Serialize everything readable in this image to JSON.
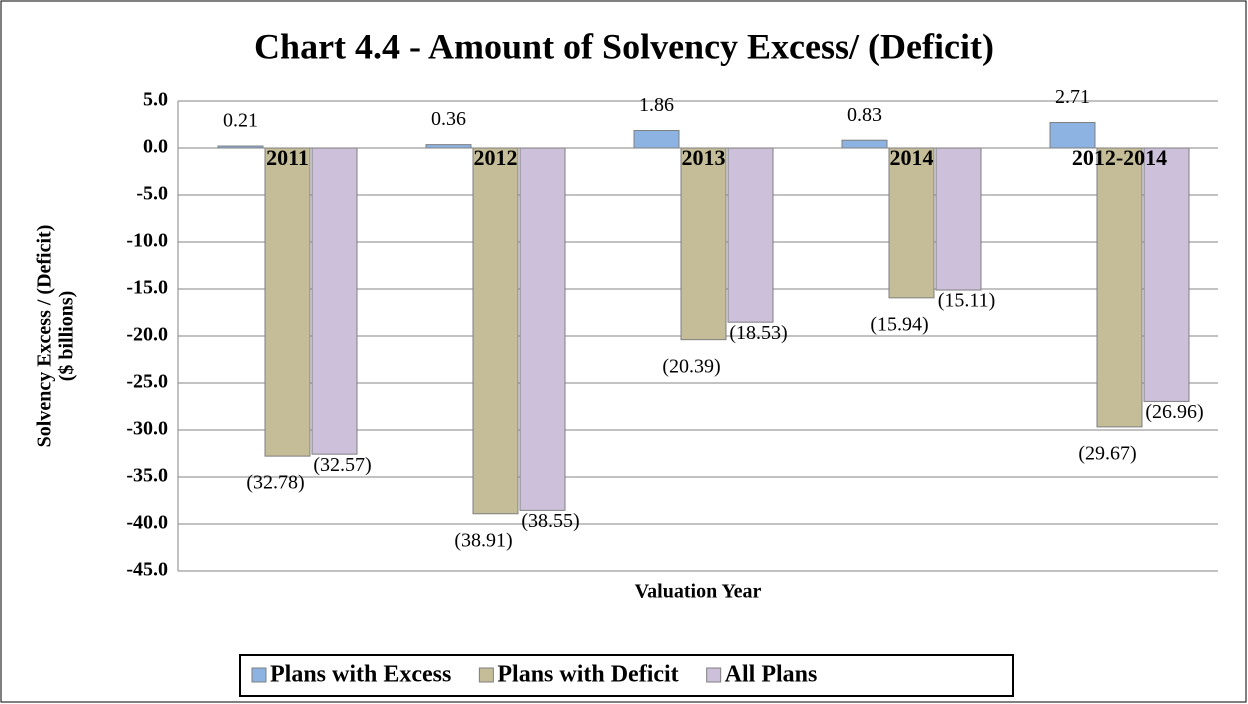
{
  "chart_data": {
    "type": "bar",
    "title": "Chart 4.4 - Amount of Solvency Excess/ (Deficit)",
    "y_label": "Solvency Excess / (Deficit)",
    "y_label_unit": "($ billions)",
    "x_label": "Valuation Year",
    "categories": [
      "2011",
      "2012",
      "2013",
      "2014",
      "2012-2014"
    ],
    "series": [
      {
        "name": "Plans with Excess",
        "color": "#8db3e2",
        "values": [
          0.21,
          0.36,
          1.86,
          0.83,
          2.71
        ]
      },
      {
        "name": "Plans with Deficit",
        "color": "#c4bd97",
        "values": [
          -32.78,
          -38.91,
          -20.39,
          -15.94,
          -29.67
        ],
        "value_labels": [
          "(32.78)",
          "(38.91)",
          "(20.39)",
          "(15.94)",
          "(29.67)"
        ]
      },
      {
        "name": "All Plans",
        "color": "#ccc0da",
        "values": [
          -32.57,
          -38.55,
          -18.53,
          -15.11,
          -26.96
        ],
        "value_labels": [
          "(32.57)",
          "(38.55)",
          "(18.53)",
          "(15.11)",
          "(26.96)"
        ]
      }
    ],
    "ylim": [
      -45,
      5
    ],
    "yticks": [
      {
        "value": 5,
        "label": "5.0"
      },
      {
        "value": 0,
        "label": "0.0"
      },
      {
        "value": -5,
        "label": "-5.0"
      },
      {
        "value": -10,
        "label": "-10.0"
      },
      {
        "value": -15,
        "label": "-15.0"
      },
      {
        "value": -20,
        "label": "-20.0"
      },
      {
        "value": -25,
        "label": "-25.0"
      },
      {
        "value": -30,
        "label": "-30.0"
      },
      {
        "value": -35,
        "label": "-35.0"
      },
      {
        "value": -40,
        "label": "-40.0"
      },
      {
        "value": -45,
        "label": "-45.0"
      }
    ],
    "grid": true,
    "legend": "bottom"
  }
}
